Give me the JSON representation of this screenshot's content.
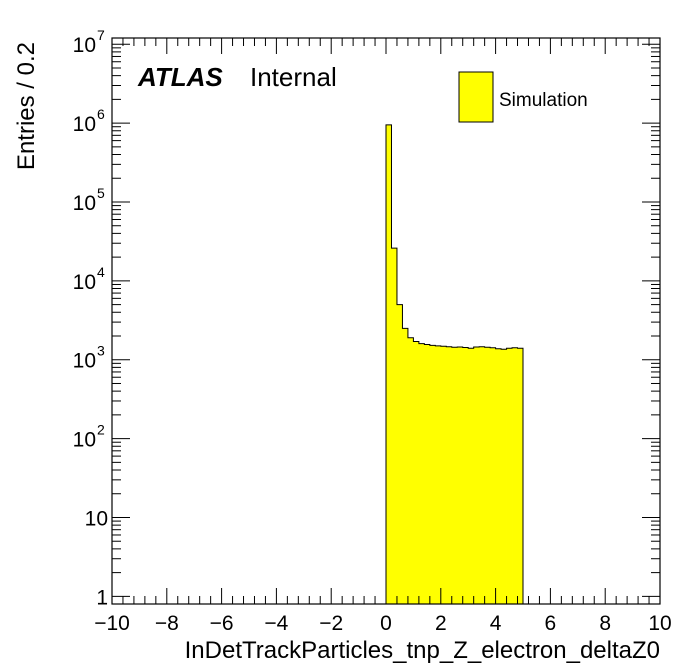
{
  "chart_data": {
    "type": "bar",
    "title": "",
    "xlabel": "InDetTrackParticles_tnp_Z_electron_deltaZ0",
    "ylabel": "Entries / 0.2",
    "xlim": [
      -10,
      10
    ],
    "ylim": [
      0.8,
      12000000
    ],
    "yscale": "log",
    "grid": false,
    "legend_position": "top-right",
    "bin_width": 0.2,
    "fill_color": "#ffff00",
    "line_color": "#000000",
    "x_ticks": [
      "−10",
      "−8",
      "−6",
      "−4",
      "−2",
      "0",
      "2",
      "4",
      "6",
      "8",
      "10"
    ],
    "y_ticks": [
      {
        "base": "1",
        "exp": ""
      },
      {
        "base": "10",
        "exp": ""
      },
      {
        "base": "10",
        "exp": "2"
      },
      {
        "base": "10",
        "exp": "3"
      },
      {
        "base": "10",
        "exp": "4"
      },
      {
        "base": "10",
        "exp": "5"
      },
      {
        "base": "10",
        "exp": "6"
      },
      {
        "base": "10",
        "exp": "7"
      }
    ],
    "atlas_label": "ATLAS",
    "atlas_status": "Internal",
    "series": [
      {
        "name": "Simulation",
        "bin_edges_start": 0.0,
        "values": [
          950000,
          26000,
          5000,
          2500,
          1900,
          1700,
          1600,
          1560,
          1520,
          1500,
          1480,
          1460,
          1440,
          1450,
          1430,
          1400,
          1450,
          1460,
          1440,
          1420,
          1380,
          1360,
          1400,
          1420,
          1400
        ]
      }
    ]
  }
}
